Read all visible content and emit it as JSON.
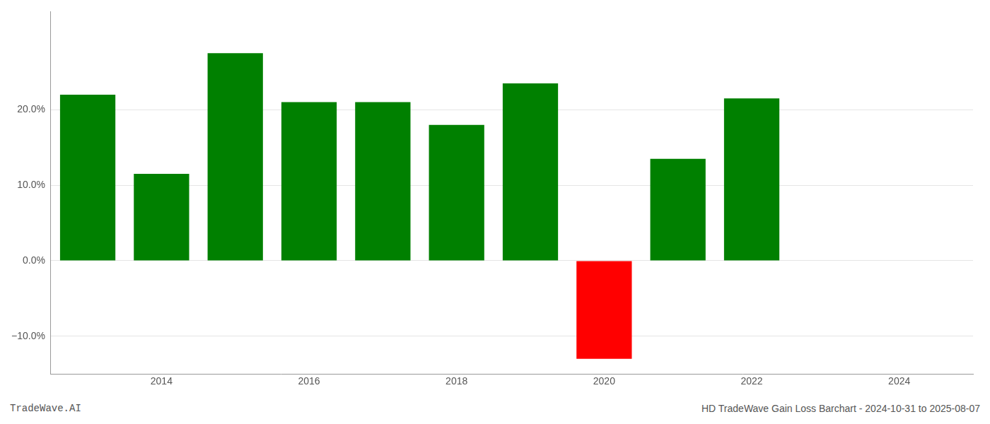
{
  "chart_data": {
    "type": "bar",
    "x": [
      2013,
      2014,
      2015,
      2016,
      2017,
      2018,
      2019,
      2020,
      2021,
      2022
    ],
    "values": [
      22.0,
      11.5,
      27.5,
      21.0,
      21.0,
      18.0,
      23.5,
      -13.0,
      13.5,
      21.5
    ],
    "colors": [
      "#008000",
      "#008000",
      "#008000",
      "#008000",
      "#008000",
      "#008000",
      "#008000",
      "#ff0000",
      "#008000",
      "#008000"
    ],
    "xlim": [
      2012.5,
      2025.0
    ],
    "xticks": [
      2014,
      2016,
      2018,
      2020,
      2022,
      2024
    ],
    "ylim": [
      -15.0,
      33.0
    ],
    "yticks": [
      {
        "value": -10.0,
        "label": "−10.0%"
      },
      {
        "value": 0.0,
        "label": "0.0%"
      },
      {
        "value": 10.0,
        "label": "10.0%"
      },
      {
        "value": 20.0,
        "label": "20.0%"
      }
    ],
    "grid": true,
    "annotations": [
      "TradeWave.AI",
      "HD TradeWave Gain Loss Barchart - 2024-10-31 to 2025-08-07"
    ]
  }
}
